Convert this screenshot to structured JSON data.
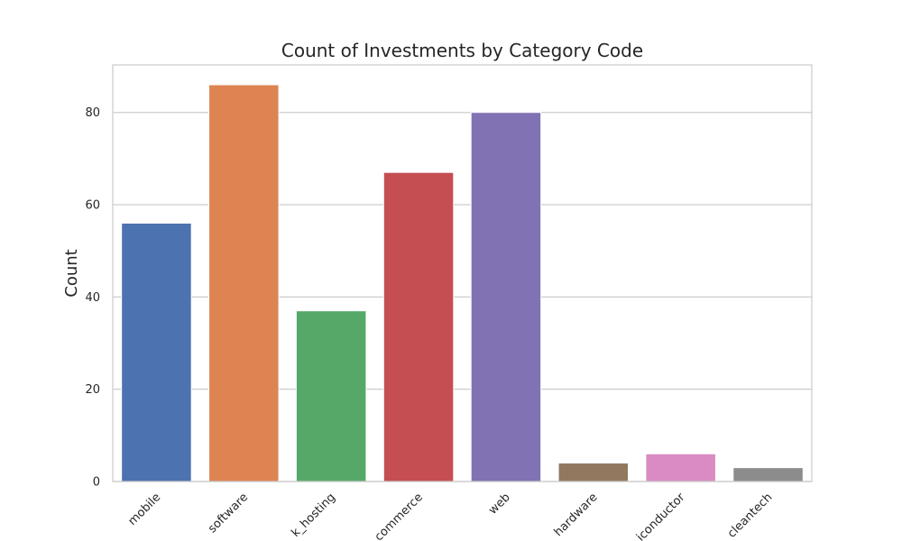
{
  "chart_data": {
    "type": "bar",
    "title": "Count of Investments by Category Code",
    "xlabel": "",
    "ylabel": "Count",
    "categories": [
      "mobile",
      "software",
      "network_hosting",
      "ecommerce",
      "web",
      "hardware",
      "semiconductor",
      "cleantech"
    ],
    "visible_category_labels": [
      "mobile",
      "software",
      "k_hosting",
      "commerce",
      "web",
      "hardware",
      "iconductor",
      "cleantech"
    ],
    "values": [
      56,
      86,
      37,
      67,
      80,
      4,
      6,
      3
    ],
    "colors": [
      "#4c72b0",
      "#dd8452",
      "#55a868",
      "#c44e52",
      "#8172b3",
      "#937860",
      "#da8bc3",
      "#8c8c8c"
    ],
    "ylim": [
      0,
      90.3
    ],
    "yticks": [
      0,
      20,
      40,
      60,
      80
    ],
    "grid": true,
    "legend": "none"
  }
}
